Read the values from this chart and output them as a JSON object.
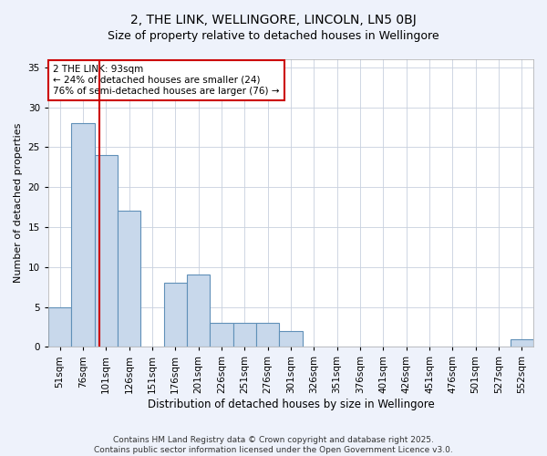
{
  "title": "2, THE LINK, WELLINGORE, LINCOLN, LN5 0BJ",
  "subtitle": "Size of property relative to detached houses in Wellingore",
  "xlabel": "Distribution of detached houses by size in Wellingore",
  "ylabel": "Number of detached properties",
  "categories": [
    "51sqm",
    "76sqm",
    "101sqm",
    "126sqm",
    "151sqm",
    "176sqm",
    "201sqm",
    "226sqm",
    "251sqm",
    "276sqm",
    "301sqm",
    "326sqm",
    "351sqm",
    "376sqm",
    "401sqm",
    "426sqm",
    "451sqm",
    "476sqm",
    "501sqm",
    "527sqm",
    "552sqm"
  ],
  "values": [
    5,
    28,
    24,
    17,
    0,
    8,
    9,
    3,
    3,
    3,
    2,
    0,
    0,
    0,
    0,
    0,
    0,
    0,
    0,
    0,
    1
  ],
  "bar_color": "#c8d8eb",
  "bar_edgecolor": "#6090b8",
  "bar_linewidth": 0.8,
  "vline_x": 1.72,
  "vline_color": "#cc0000",
  "vline_linewidth": 1.5,
  "annotation_text": "2 THE LINK: 93sqm\n← 24% of detached houses are smaller (24)\n76% of semi-detached houses are larger (76) →",
  "annotation_box_edgecolor": "#cc0000",
  "annotation_box_facecolor": "#ffffff",
  "annotation_fontsize": 7.5,
  "ylim": [
    0,
    36
  ],
  "yticks": [
    0,
    5,
    10,
    15,
    20,
    25,
    30,
    35
  ],
  "title_fontsize": 10,
  "subtitle_fontsize": 9,
  "xlabel_fontsize": 8.5,
  "ylabel_fontsize": 8,
  "tick_fontsize": 7.5,
  "footer_text": "Contains HM Land Registry data © Crown copyright and database right 2025.\nContains public sector information licensed under the Open Government Licence v3.0.",
  "footer_fontsize": 6.5,
  "bg_color": "#eef2fb",
  "plot_bg_color": "#ffffff",
  "grid_color": "#c8d0de"
}
